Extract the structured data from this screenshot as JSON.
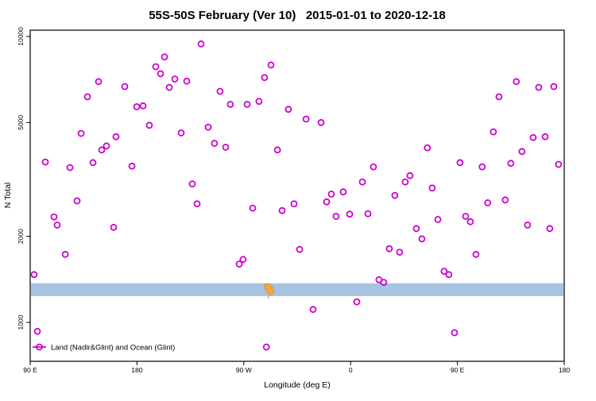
{
  "chart_data": {
    "type": "scatter",
    "title": "55S-50S February (Ver 10)   2015-01-01 to 2020-12-18",
    "xlabel": "Longitude (deg E)",
    "ylabel": "N Total",
    "legend": "Land (Nadir&Glint) and Ocean (Glint)",
    "legend_position": "bottom-left-inside",
    "grid": false,
    "y_scale": "log",
    "ylim": [
      731,
      10520
    ],
    "x_axis_note": "axis starts at 90E on the left and wraps eastward 450 degrees; x values below are degrees east of the left edge",
    "x_domain": [
      0,
      450
    ],
    "x_ticks": [
      {
        "u": 0,
        "label": "90 E"
      },
      {
        "u": 90,
        "label": "180"
      },
      {
        "u": 180,
        "label": "90 W"
      },
      {
        "u": 270,
        "label": "0"
      },
      {
        "u": 360,
        "label": "90 E"
      },
      {
        "u": 450,
        "label": "180"
      }
    ],
    "y_ticks": [
      {
        "v": 1000,
        "label": "1000"
      },
      {
        "v": 2000,
        "label": "2000"
      },
      {
        "v": 5000,
        "label": "5000"
      },
      {
        "v": 10000,
        "label": "10000"
      }
    ],
    "colors": {
      "point": "#cd00cd",
      "ocean_band": "#a7c3e2",
      "land_patch": "#f3a83c",
      "land_patch_edge": "#d98f2b"
    },
    "map_band": {
      "description": "horizontal strip map of the 55S-50S latitude band: ocean in blue with small land patch (southern South America) in orange",
      "n_range": [
        1236,
        1370
      ],
      "land_patches": [
        {
          "name": "south-america-tip",
          "u_range": [
            196.9,
            206.2
          ]
        }
      ]
    },
    "points": [
      [
        3.3,
        1470
      ],
      [
        6,
        930
      ],
      [
        12.7,
        3640
      ],
      [
        20.1,
        2340
      ],
      [
        22.8,
        2190
      ],
      [
        29.5,
        1730
      ],
      [
        33.5,
        3480
      ],
      [
        39.5,
        2660
      ],
      [
        42.9,
        4580
      ],
      [
        48.2,
        6150
      ],
      [
        52.9,
        3620
      ],
      [
        57.6,
        6950
      ],
      [
        60.3,
        4010
      ],
      [
        64.3,
        4140
      ],
      [
        70.3,
        2150
      ],
      [
        72.3,
        4460
      ],
      [
        79.7,
        6680
      ],
      [
        85.7,
        3520
      ],
      [
        89.7,
        5680
      ],
      [
        95.1,
        5720
      ],
      [
        100.4,
        4890
      ],
      [
        105.8,
        7840
      ],
      [
        109.8,
        7410
      ],
      [
        113.2,
        8480
      ],
      [
        117.2,
        6640
      ],
      [
        121.9,
        7100
      ],
      [
        127.2,
        4600
      ],
      [
        131.9,
        6980
      ],
      [
        136.6,
        3050
      ],
      [
        140.6,
        2600
      ],
      [
        144,
        9420
      ],
      [
        150,
        4820
      ],
      [
        155.3,
        4230
      ],
      [
        160,
        6430
      ],
      [
        164.7,
        4100
      ],
      [
        168.7,
        5790
      ],
      [
        176.1,
        1600
      ],
      [
        179.4,
        1660
      ],
      [
        182.8,
        5790
      ],
      [
        187.5,
        2510
      ],
      [
        192.8,
        5930
      ],
      [
        197.5,
        7180
      ],
      [
        199,
        820
      ],
      [
        202.9,
        7950
      ],
      [
        208.3,
        4010
      ],
      [
        212.3,
        2460
      ],
      [
        217.6,
        5560
      ],
      [
        222.3,
        2600
      ],
      [
        227,
        1800
      ],
      [
        232.4,
        5140
      ],
      [
        238.4,
        1110
      ],
      [
        245.1,
        5000
      ],
      [
        249.8,
        2640
      ],
      [
        253.8,
        2810
      ],
      [
        257.8,
        2350
      ],
      [
        263.8,
        2860
      ],
      [
        269.2,
        2390
      ],
      [
        275.2,
        1180
      ],
      [
        279.9,
        3100
      ],
      [
        284.6,
        2400
      ],
      [
        289.2,
        3500
      ],
      [
        293.9,
        1410
      ],
      [
        297.9,
        1380
      ],
      [
        302.6,
        1810
      ],
      [
        307.3,
        2780
      ],
      [
        311.3,
        1760
      ],
      [
        316,
        3100
      ],
      [
        320,
        3260
      ],
      [
        325.4,
        2130
      ],
      [
        330.1,
        1960
      ],
      [
        334.7,
        4080
      ],
      [
        338.8,
        2950
      ],
      [
        343.5,
        2290
      ],
      [
        348.8,
        1510
      ],
      [
        352.8,
        1470
      ],
      [
        357.5,
        920
      ],
      [
        362.2,
        3620
      ],
      [
        366.9,
        2350
      ],
      [
        370.9,
        2250
      ],
      [
        375.6,
        1730
      ],
      [
        380.9,
        3500
      ],
      [
        385.6,
        2620
      ],
      [
        390.3,
        4640
      ],
      [
        395,
        6150
      ],
      [
        400.3,
        2680
      ],
      [
        405,
        3600
      ],
      [
        409.7,
        6950
      ],
      [
        414.4,
        3960
      ],
      [
        419.1,
        2190
      ],
      [
        423.8,
        4430
      ],
      [
        428.5,
        6640
      ],
      [
        433.9,
        4460
      ],
      [
        437.8,
        2130
      ],
      [
        441.2,
        6680
      ],
      [
        445.2,
        3570
      ]
    ]
  }
}
